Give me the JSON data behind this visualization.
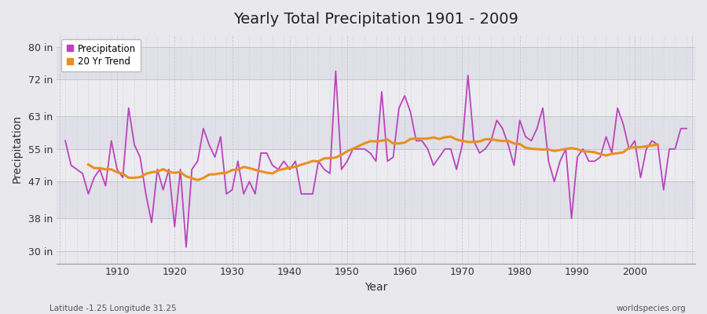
{
  "title": "Yearly Total Precipitation 1901 - 2009",
  "ylabel": "Precipitation",
  "xlabel": "Year",
  "x_start": 1901,
  "x_end": 2009,
  "ytick_labels": [
    "30 in",
    "38 in",
    "47 in",
    "55 in",
    "63 in",
    "72 in",
    "80 in"
  ],
  "ytick_values": [
    30,
    38,
    47,
    55,
    63,
    72,
    80
  ],
  "ylim": [
    27,
    83
  ],
  "xlim": [
    1899.5,
    2010.5
  ],
  "precip_color": "#bb44bb",
  "trend_color": "#e89020",
  "bg_color": "#e8e8ed",
  "plot_bg_color": "#e8e8ed",
  "band_color_light": "#f0f0f5",
  "band_color_dark": "#e0e0e8",
  "grid_color_h": "#d0d0d8",
  "grid_color_v": "#d0d0d8",
  "footer_left": "Latitude -1.25 Longitude 31.25",
  "footer_right": "worldspecies.org",
  "legend_labels": [
    "Precipitation",
    "20 Yr Trend"
  ],
  "precipitation": [
    57,
    51,
    50,
    49,
    44,
    48,
    50,
    46,
    57,
    50,
    48,
    65,
    56,
    53,
    44,
    37,
    50,
    45,
    50,
    36,
    50,
    31,
    50,
    52,
    60,
    56,
    53,
    58,
    44,
    45,
    52,
    44,
    47,
    44,
    54,
    54,
    51,
    50,
    52,
    50,
    52,
    44,
    44,
    44,
    52,
    50,
    49,
    74,
    50,
    52,
    55,
    55,
    55,
    54,
    52,
    69,
    52,
    53,
    65,
    68,
    64,
    57,
    57,
    55,
    51,
    53,
    55,
    55,
    50,
    56,
    73,
    57,
    54,
    55,
    57,
    62,
    60,
    56,
    51,
    62,
    58,
    57,
    60,
    65,
    52,
    47,
    52,
    55,
    38,
    53,
    55,
    52,
    52,
    53,
    58,
    54,
    65,
    61,
    55,
    57,
    48,
    55,
    57,
    56,
    45,
    55,
    55,
    60,
    60
  ]
}
